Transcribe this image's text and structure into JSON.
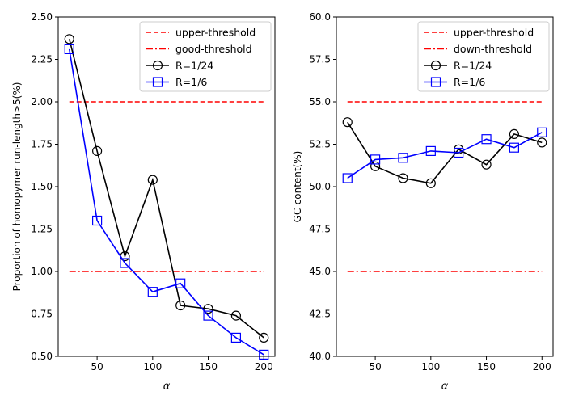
{
  "colors": {
    "threshold": "#ff0000",
    "r24": "#000000",
    "r6": "#0000ff"
  },
  "chart_data": [
    {
      "type": "line",
      "xlabel": "α",
      "ylabel": "Proportion of homopymer run-length>5(%)",
      "xlim": [
        15,
        210
      ],
      "ylim": [
        0.5,
        2.5
      ],
      "xticks": [
        50,
        100,
        150,
        200
      ],
      "xtick_labels": [
        "50",
        "100",
        "150",
        "200"
      ],
      "yticks": [
        0.5,
        0.75,
        1.0,
        1.25,
        1.5,
        1.75,
        2.0,
        2.25,
        2.5
      ],
      "ytick_labels": [
        "0.50",
        "0.75",
        "1.00",
        "1.25",
        "1.50",
        "1.75",
        "2.00",
        "2.25",
        "2.50"
      ],
      "legend_position": "top-right",
      "thresholds": [
        {
          "name": "upper-threshold",
          "value": 2.0,
          "style": "dashed",
          "x": [
            25,
            200
          ]
        },
        {
          "name": "good-threshold",
          "value": 1.0,
          "style": "dashdot",
          "x": [
            25,
            200
          ]
        }
      ],
      "series": [
        {
          "name": "R=1/24",
          "marker": "circle",
          "x": [
            25,
            50,
            75,
            100,
            125,
            150,
            175,
            200
          ],
          "values": [
            2.37,
            1.71,
            1.09,
            1.54,
            0.8,
            0.78,
            0.74,
            0.61
          ]
        },
        {
          "name": "R=1/6",
          "marker": "square",
          "x": [
            25,
            50,
            75,
            100,
            125,
            150,
            175,
            200
          ],
          "values": [
            2.31,
            1.3,
            1.05,
            0.88,
            0.93,
            0.74,
            0.61,
            0.51
          ]
        }
      ]
    },
    {
      "type": "line",
      "xlabel": "α",
      "ylabel": "GC-content(%)",
      "xlim": [
        15,
        210
      ],
      "ylim": [
        40.0,
        60.0
      ],
      "xticks": [
        50,
        100,
        150,
        200
      ],
      "xtick_labels": [
        "50",
        "100",
        "150",
        "200"
      ],
      "yticks": [
        40.0,
        42.5,
        45.0,
        47.5,
        50.0,
        52.5,
        55.0,
        57.5,
        60.0
      ],
      "ytick_labels": [
        "40.0",
        "42.5",
        "45.0",
        "47.5",
        "50.0",
        "52.5",
        "55.0",
        "57.5",
        "60.0"
      ],
      "legend_position": "top-right",
      "thresholds": [
        {
          "name": "upper-threshold",
          "value": 55.0,
          "style": "dashed",
          "x": [
            25,
            200
          ]
        },
        {
          "name": "down-threshold",
          "value": 45.0,
          "style": "dashdot",
          "x": [
            25,
            200
          ]
        }
      ],
      "series": [
        {
          "name": "R=1/24",
          "marker": "circle",
          "x": [
            25,
            50,
            75,
            100,
            125,
            150,
            175,
            200
          ],
          "values": [
            53.8,
            51.2,
            50.5,
            50.2,
            52.2,
            51.3,
            53.1,
            52.6
          ]
        },
        {
          "name": "R=1/6",
          "marker": "square",
          "x": [
            25,
            50,
            75,
            100,
            125,
            150,
            175,
            200
          ],
          "values": [
            50.5,
            51.6,
            51.7,
            52.1,
            52.0,
            52.8,
            52.3,
            53.2
          ]
        }
      ]
    }
  ]
}
